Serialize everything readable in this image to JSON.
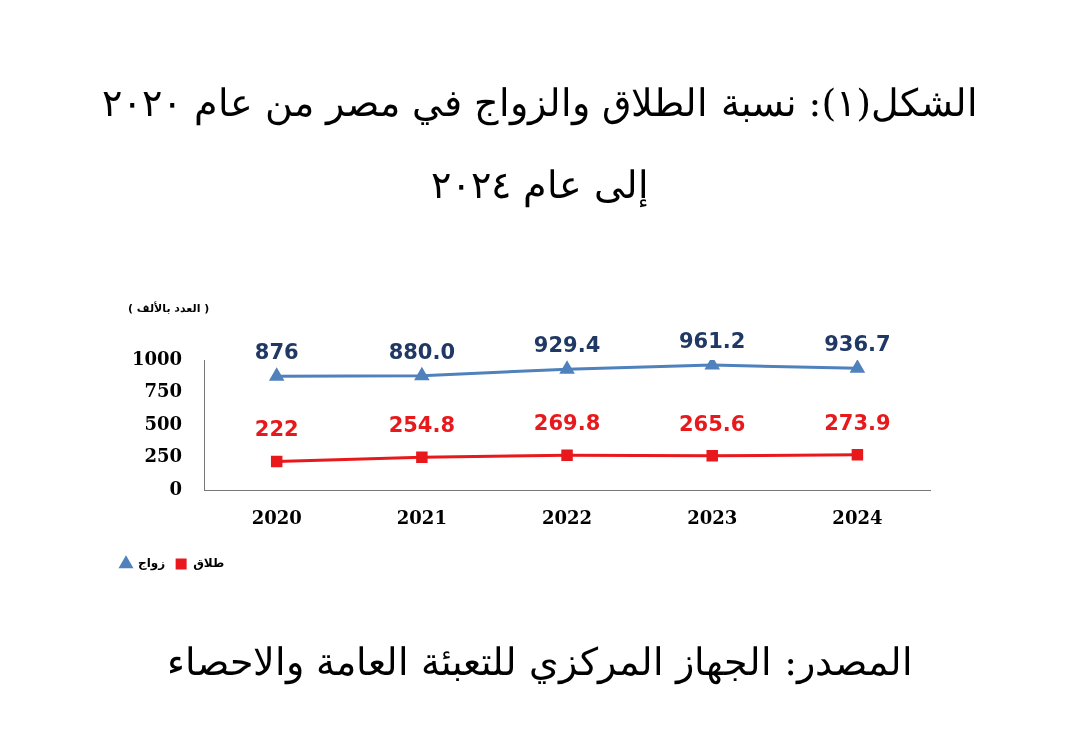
{
  "chart_data": {
    "type": "line",
    "title": "الشكل(١): نسبة الطلاق والزواج في مصر من عام ٢٠٢٠ إلى عام ٢٠٢٤",
    "ylabel": "( العدد بالألف )",
    "annotations": [
      "المصدر: الجهاز المركزي للتعبئة العامة والاحصاء"
    ],
    "categories": [
      "2020",
      "2021",
      "2022",
      "2023",
      "2024"
    ],
    "series": [
      {
        "name": "زواج",
        "color": "#4f81bd",
        "marker": "triangle",
        "values": [
          876,
          880.0,
          929.4,
          961.2,
          936.7
        ],
        "value_labels": [
          "876",
          "880.0",
          "929.4",
          "961.2",
          "936.7"
        ]
      },
      {
        "name": "طلاق",
        "color": "#e8191c",
        "marker": "square",
        "values": [
          222,
          254.8,
          269.8,
          265.6,
          273.9
        ],
        "value_labels": [
          "222",
          "254.8",
          "269.8",
          "265.6",
          "273.9"
        ]
      }
    ],
    "ylim": [
      0,
      1000
    ],
    "yticks": [
      0,
      250,
      500,
      750,
      1000
    ],
    "grid": false,
    "legend": "bottom left"
  }
}
